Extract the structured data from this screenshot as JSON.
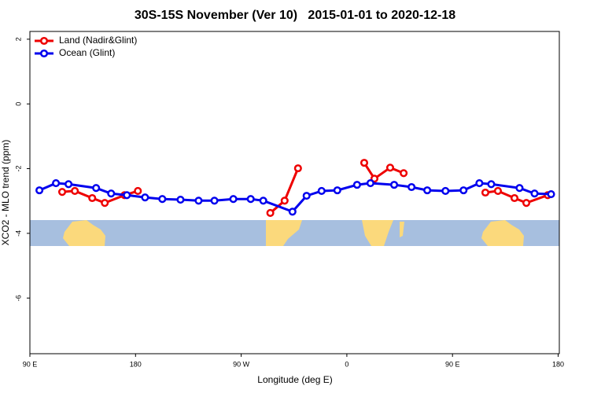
{
  "chart_data": {
    "type": "line",
    "title": "30S-15S November (Ver 10)   2015-01-01 to 2020-12-18",
    "x_label": "Longitude (deg E)",
    "y_label": "XCO2 - MLO trend (ppm)",
    "xlim": [
      90,
      541
    ],
    "xticks": [
      {
        "value": 90,
        "label": "90 E"
      },
      {
        "value": 180,
        "label": "180"
      },
      {
        "value": 270,
        "label": "90 W"
      },
      {
        "value": 360,
        "label": "0"
      },
      {
        "value": 450,
        "label": "90 E"
      },
      {
        "value": 540,
        "label": "180"
      }
    ],
    "ylim": [
      -7.72,
      2.24
    ],
    "yticks": [
      2,
      0,
      -2,
      -4,
      -6
    ],
    "legend": "top-left",
    "series": [
      {
        "name": "Land (Nadir&Glint)",
        "color": "#ee0000",
        "x": [
          117.5,
          128.3,
          143.1,
          153.8,
          170.6,
          182.0,
          null,
          294.8,
          307.0,
          318.4,
          null,
          374.8,
          383.5,
          396.9,
          408.4,
          null,
          478.0,
          488.7,
          502.8,
          512.9,
          531.1
        ],
        "values": [
          -2.72,
          -2.69,
          -2.91,
          -3.06,
          -2.82,
          -2.69,
          null,
          -3.37,
          -2.99,
          -1.99,
          null,
          -1.82,
          -2.31,
          -1.97,
          -2.14,
          null,
          -2.74,
          -2.69,
          -2.91,
          -3.06,
          -2.82
        ]
      },
      {
        "name": "Ocean (Glint)",
        "color": "#0000ee",
        "x": [
          98.1,
          112.2,
          122.9,
          146.4,
          159.2,
          172.6,
          188.1,
          202.8,
          218.3,
          233.7,
          247.2,
          263.3,
          278.1,
          288.8,
          313.7,
          325.7,
          338.5,
          351.9,
          368.7,
          380.1,
          400.3,
          415.1,
          428.5,
          444.0,
          459.4,
          472.9,
          483.0,
          507.1,
          519.9,
          534.0
        ],
        "values": [
          -2.67,
          -2.45,
          -2.48,
          -2.6,
          -2.77,
          -2.82,
          -2.89,
          -2.94,
          -2.96,
          -2.99,
          -2.99,
          -2.94,
          -2.94,
          -2.99,
          -3.33,
          -2.84,
          -2.69,
          -2.67,
          -2.5,
          -2.45,
          -2.5,
          -2.57,
          -2.67,
          -2.69,
          -2.67,
          -2.45,
          -2.48,
          -2.6,
          -2.77,
          -2.79
        ]
      }
    ]
  }
}
